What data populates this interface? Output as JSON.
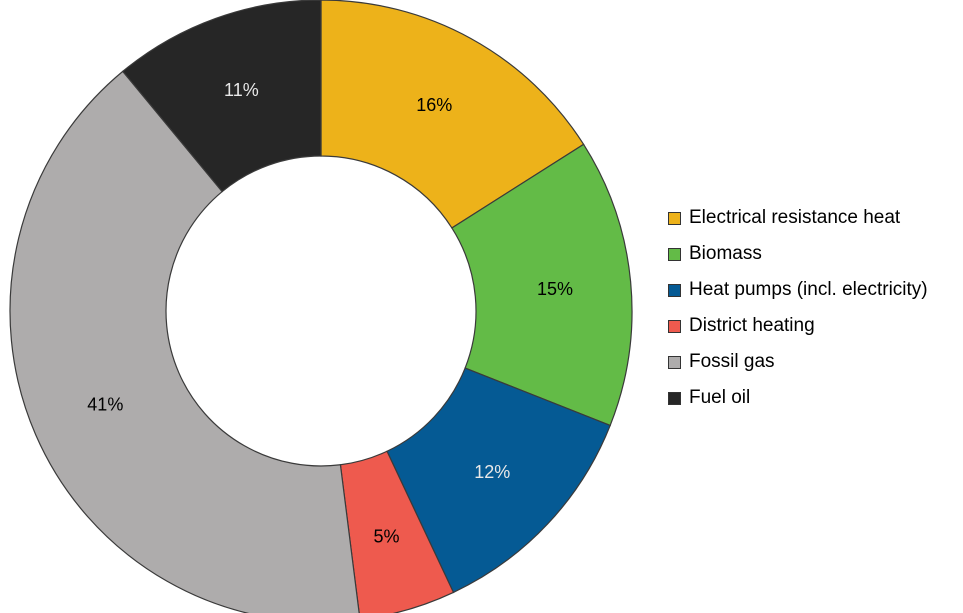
{
  "chart_data": {
    "type": "pie",
    "style": "donut",
    "title": "",
    "categories": [
      "Electrical resistance heat",
      "Biomass",
      "Heat pumps (incl. electricity)",
      "District heating",
      "Fossil gas",
      "Fuel oil"
    ],
    "values": [
      16,
      15,
      12,
      5,
      41,
      11
    ],
    "value_labels": [
      "16%",
      "15%",
      "12%",
      "5%",
      "41%",
      "11%"
    ],
    "unit": "%",
    "colors": [
      "#EDB21A",
      "#63BB47",
      "#055A94",
      "#EE5A4E",
      "#AEACAC",
      "#262626"
    ],
    "label_colors": [
      "#000000",
      "#000000",
      "#E8E8E8",
      "#000000",
      "#000000",
      "#E8E8E8"
    ],
    "start_angle": "12 o'clock",
    "direction": "clockwise",
    "legend": {
      "position": "right",
      "entries": [
        "Electrical resistance heat",
        "Biomass",
        "Heat pumps (incl. electricity)",
        "District heating",
        "Fossil gas",
        "Fuel oil"
      ]
    }
  }
}
